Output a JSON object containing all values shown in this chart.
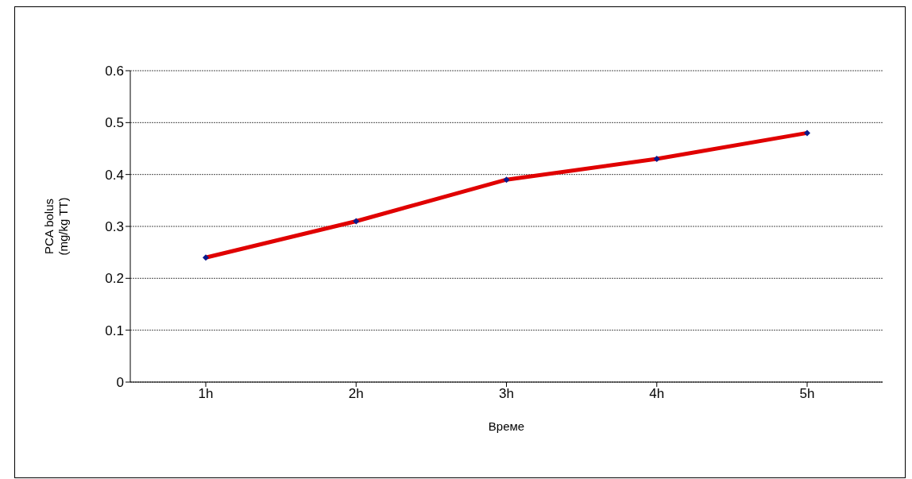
{
  "chart_data": {
    "type": "line",
    "xlabel": "Време",
    "ylabel": "PCA bolus\n(mg/kg TT)",
    "categories": [
      "1h",
      "2h",
      "3h",
      "4h",
      "5h"
    ],
    "series": [
      {
        "color": "#e00000",
        "values": [
          0.24,
          0.31,
          0.39,
          0.43,
          0.48
        ]
      }
    ],
    "ylim": [
      0,
      0.6
    ],
    "yticks": [
      0,
      0.1,
      0.2,
      0.3,
      0.4,
      0.5,
      0.6
    ],
    "grid": "y",
    "marker": "diamond",
    "line_style": "solid"
  }
}
